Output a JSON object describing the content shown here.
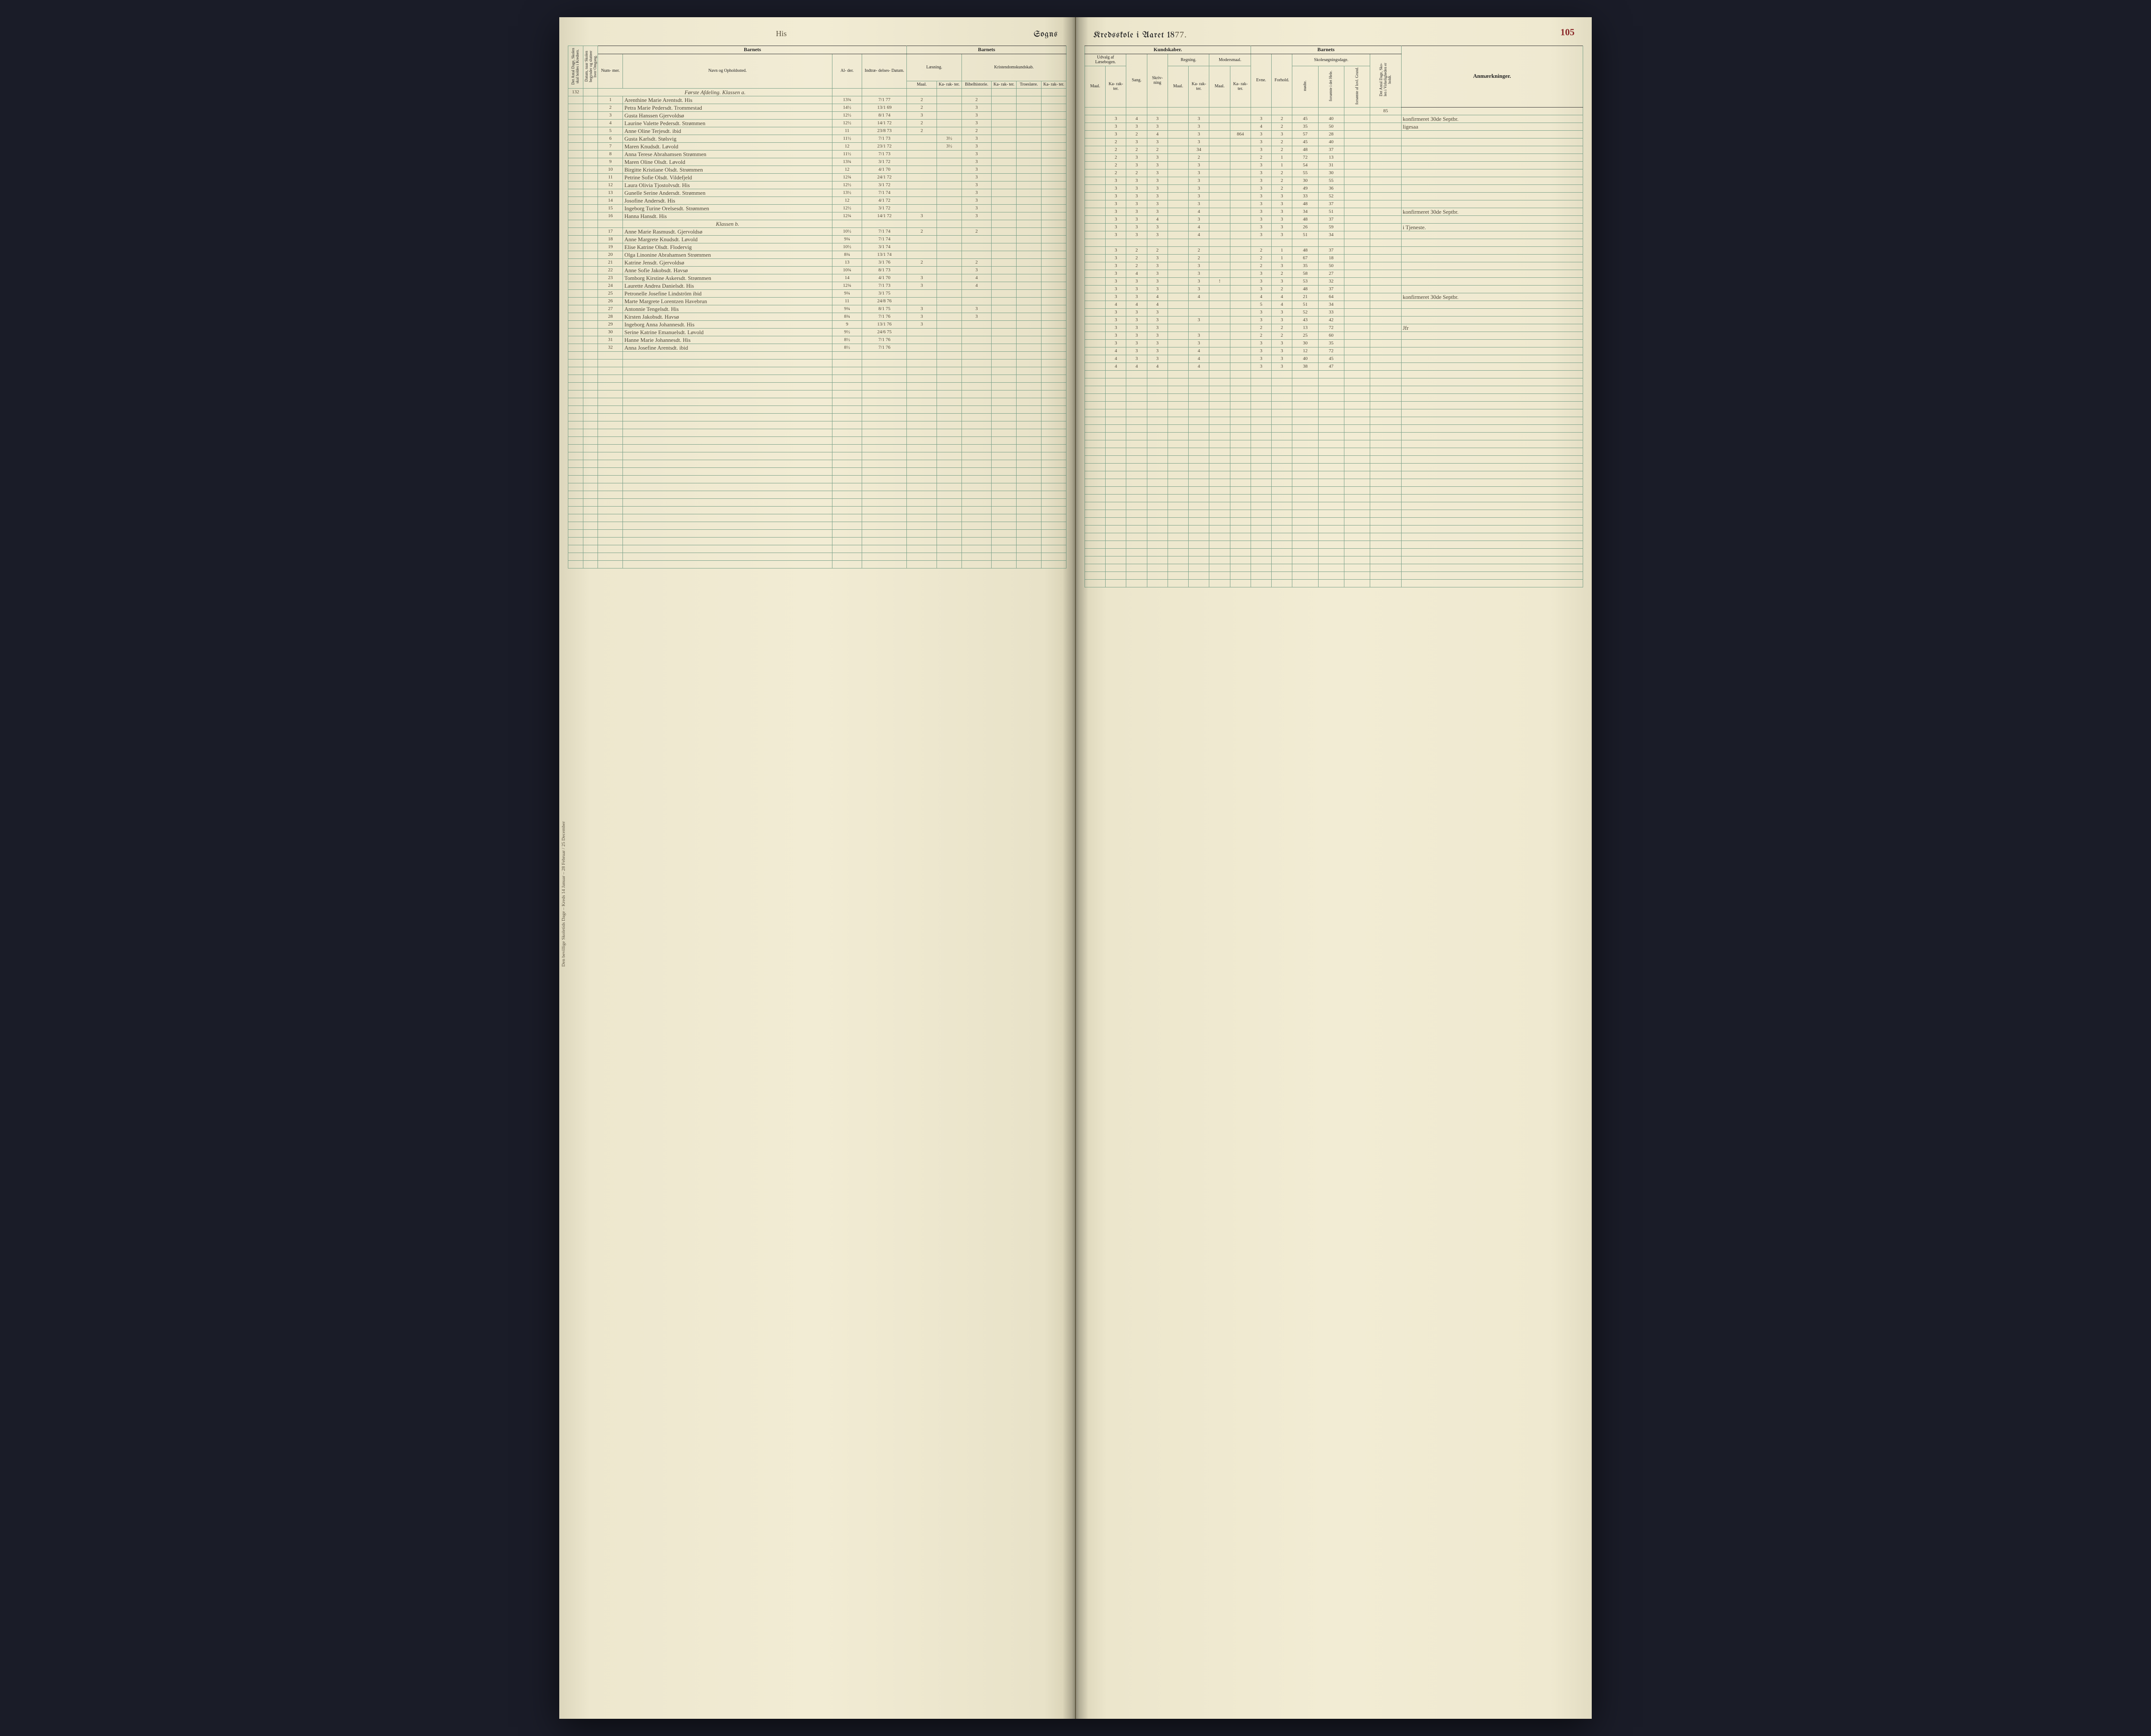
{
  "page_number": "105",
  "title_left": "Sogns",
  "title_right_prefix": "Kredsskole i Aaret 18",
  "title_year_suffix": "77.",
  "handwritten_top_left": "His",
  "side_margin_note": "Den bevillige Skoletids Dage – Kreds 14 Januar – 28 Februar / 25 December",
  "colors": {
    "paper": "#f2ecd4",
    "paper_edge": "#dcd6bc",
    "rule_line": "#7aa088",
    "heavy_line": "#333333",
    "ink_print": "#222222",
    "ink_hand": "#4b4536",
    "page_num": "#8c2a2a",
    "book_bg": "#1a1c28"
  },
  "left_page": {
    "section_barnets": "Barnets",
    "section_laesning": "Læsning.",
    "section_kristendom": "Kristendomskundskab.",
    "col_side1": "Det Antal Dage, Skolen skal holdes i Kredsen.",
    "col_side2": "Datum, naar Skolen begynder og slutteer hver Omgang.",
    "col_nummer": "Num-\nmer.",
    "col_navn": "Navn og Opholdssted.",
    "col_alder": "Al-\nder.",
    "col_indtr": "Indtræ-\ndelses-\nDatum.",
    "col_maal": "Maal.",
    "col_karak": "Ka-\nrak-\nter.",
    "col_bibel": "Bibelhistorie.",
    "col_troes": "Troeslære."
  },
  "right_page": {
    "section_kundskaber": "Kundskaber.",
    "section_barnets": "Barnets",
    "section_skolesog": "Skolesøgningsdage.",
    "col_udvalg": "Udvalg af\nLæsebogen.",
    "col_sang": "Sang.",
    "col_skriv": "Skriv-\nning",
    "col_regning": "Regning.",
    "col_modersmaal": "Modersmaal.",
    "col_evne": "Evne.",
    "col_forhold": "Forhold.",
    "col_modte": "mødte.",
    "col_fors_hele": "forsømte i\ndet Hele.",
    "col_fors_grund": "forsømte af\nlovl. Grund.",
    "col_antal_dage": "Det Antal Dage, Sko-\nlen i Virkeligheden\ner holdt.",
    "col_anm": "Anmærkninger.",
    "col_maal": "Maal.",
    "col_karak": "Ka-\nrak-\nter."
  },
  "top_numbers": {
    "left_side": "132",
    "right_total": "85"
  },
  "class_a_label": "Første Afdeling.  Klassen a.",
  "class_b_label": "Klassen b.",
  "rows_a": [
    {
      "n": "1",
      "name": "Arenthine Marie Arentsdt. His",
      "age": "13¾",
      "date": "7/1 77",
      "l_m": "2",
      "l_k": "",
      "b_m": "2",
      "b_k": "",
      "t_m": "",
      "u_k": "3",
      "sa": "4",
      "sk": "3",
      "r_m": "",
      "r_k": "3",
      "mm": "",
      "mk": "",
      "ev": "3",
      "fo": "2",
      "mo": "45",
      "fh": "40",
      "fg": "",
      "anm": "konfirmeret 30de Septbr."
    },
    {
      "n": "2",
      "name": "Petra Marie Pedersdt. Trommestad",
      "age": "14½",
      "date": "13/1 69",
      "l_m": "2",
      "l_k": "",
      "b_m": "3",
      "b_k": "",
      "t_m": "",
      "u_k": "3",
      "sa": "3",
      "sk": "3",
      "r_m": "",
      "r_k": "3",
      "mm": "",
      "mk": "",
      "ev": "4",
      "fo": "2",
      "mo": "35",
      "fh": "50",
      "fg": "",
      "anm": "ligesaa"
    },
    {
      "n": "3",
      "name": "Gusta Hanssen Gjervoldsø",
      "age": "12½",
      "date": "8/1 74",
      "l_m": "3",
      "l_k": "",
      "b_m": "3",
      "b_k": "",
      "t_m": "",
      "u_k": "3",
      "sa": "2",
      "sk": "4",
      "r_m": "",
      "r_k": "3",
      "mm": "",
      "mk": "864",
      "ev": "3",
      "fo": "3",
      "mo": "57",
      "fh": "28",
      "fg": "",
      "anm": ""
    },
    {
      "n": "4",
      "name": "Laurine Valette Pedersdt. Strømmen",
      "age": "12½",
      "date": "14/1 72",
      "l_m": "2",
      "l_k": "",
      "b_m": "3",
      "b_k": "",
      "t_m": "",
      "u_k": "2",
      "sa": "3",
      "sk": "3",
      "r_m": "",
      "r_k": "3",
      "mm": "",
      "mk": "",
      "ev": "3",
      "fo": "2",
      "mo": "45",
      "fh": "40",
      "fg": "",
      "anm": ""
    },
    {
      "n": "5",
      "name": "Anne Oline Terjesdt. ibid",
      "age": "11",
      "date": "23/8 73",
      "l_m": "2",
      "l_k": "",
      "b_m": "2",
      "b_k": "",
      "t_m": "",
      "u_k": "2",
      "sa": "2",
      "sk": "2",
      "r_m": "",
      "r_k": "34",
      "mm": "",
      "mk": "",
      "ev": "3",
      "fo": "2",
      "mo": "48",
      "fh": "37",
      "fg": "",
      "anm": ""
    },
    {
      "n": "6",
      "name": "Gusta Karlsdt. Stølsvig",
      "age": "11½",
      "date": "7/1 73",
      "l_m": "",
      "l_k": "3½",
      "b_m": "3",
      "b_k": "",
      "t_m": "",
      "u_k": "2",
      "sa": "3",
      "sk": "3",
      "r_m": "",
      "r_k": "2",
      "mm": "",
      "mk": "",
      "ev": "2",
      "fo": "1",
      "mo": "72",
      "fh": "13",
      "fg": "",
      "anm": ""
    },
    {
      "n": "7",
      "name": "Maren Knudsdt. Løvold",
      "age": "12",
      "date": "23/1 72",
      "l_m": "",
      "l_k": "3½",
      "b_m": "3",
      "b_k": "",
      "t_m": "",
      "u_k": "2",
      "sa": "3",
      "sk": "3",
      "r_m": "",
      "r_k": "3",
      "mm": "",
      "mk": "",
      "ev": "3",
      "fo": "1",
      "mo": "54",
      "fh": "31",
      "fg": "",
      "anm": ""
    },
    {
      "n": "8",
      "name": "Anna Terese Abrahamsen Strømmen",
      "age": "11½",
      "date": "7/1 73",
      "l_m": "",
      "l_k": "",
      "b_m": "3",
      "b_k": "",
      "t_m": "",
      "u_k": "2",
      "sa": "2",
      "sk": "3",
      "r_m": "",
      "r_k": "3",
      "mm": "",
      "mk": "",
      "ev": "3",
      "fo": "2",
      "mo": "55",
      "fh": "30",
      "fg": "",
      "anm": ""
    },
    {
      "n": "9",
      "name": "Maren Oline Olsdt. Løvold",
      "age": "13¾",
      "date": "3/1 72",
      "l_m": "",
      "l_k": "",
      "b_m": "3",
      "b_k": "",
      "t_m": "",
      "u_k": "3",
      "sa": "3",
      "sk": "3",
      "r_m": "",
      "r_k": "3",
      "mm": "",
      "mk": "",
      "ev": "3",
      "fo": "2",
      "mo": "30",
      "fh": "55",
      "fg": "",
      "anm": ""
    },
    {
      "n": "10",
      "name": "Birgitte Kristiane Olsdt. Strømmen",
      "age": "12",
      "date": "4/1 70",
      "l_m": "",
      "l_k": "",
      "b_m": "3",
      "b_k": "",
      "t_m": "",
      "u_k": "3",
      "sa": "3",
      "sk": "3",
      "r_m": "",
      "r_k": "3",
      "mm": "",
      "mk": "",
      "ev": "3",
      "fo": "2",
      "mo": "49",
      "fh": "36",
      "fg": "",
      "anm": ""
    },
    {
      "n": "11",
      "name": "Petrine Sofie Olsdt. Vildefjeld",
      "age": "12¾",
      "date": "24/1 72",
      "l_m": "",
      "l_k": "",
      "b_m": "3",
      "b_k": "",
      "t_m": "",
      "u_k": "3",
      "sa": "3",
      "sk": "3",
      "r_m": "",
      "r_k": "3",
      "mm": "",
      "mk": "",
      "ev": "3",
      "fo": "3",
      "mo": "33",
      "fh": "52",
      "fg": "",
      "anm": ""
    },
    {
      "n": "12",
      "name": "Laura Olivia Tjostolvsdt. His",
      "age": "12½",
      "date": "3/1 72",
      "l_m": "",
      "l_k": "",
      "b_m": "3",
      "b_k": "",
      "t_m": "",
      "u_k": "3",
      "sa": "3",
      "sk": "3",
      "r_m": "",
      "r_k": "3",
      "mm": "",
      "mk": "",
      "ev": "3",
      "fo": "3",
      "mo": "48",
      "fh": "37",
      "fg": "",
      "anm": ""
    },
    {
      "n": "13",
      "name": "Gunelle Serine Andersdt. Strømmen",
      "age": "13½",
      "date": "7/1 74",
      "l_m": "",
      "l_k": "",
      "b_m": "3",
      "b_k": "",
      "t_m": "",
      "u_k": "3",
      "sa": "3",
      "sk": "3",
      "r_m": "",
      "r_k": "4",
      "mm": "",
      "mk": "",
      "ev": "3",
      "fo": "3",
      "mo": "34",
      "fh": "51",
      "fg": "",
      "anm": "konfirmeret 30de Septbr."
    },
    {
      "n": "14",
      "name": "Josofine Andersdt. His",
      "age": "12",
      "date": "4/1 72",
      "l_m": "",
      "l_k": "",
      "b_m": "3",
      "b_k": "",
      "t_m": "",
      "u_k": "3",
      "sa": "3",
      "sk": "4",
      "r_m": "",
      "r_k": "3",
      "mm": "",
      "mk": "",
      "ev": "3",
      "fo": "3",
      "mo": "48",
      "fh": "37",
      "fg": "",
      "anm": ""
    },
    {
      "n": "15",
      "name": "Ingeborg Turine Orelsesdt. Strømmen",
      "age": "12½",
      "date": "3/1 72",
      "l_m": "",
      "l_k": "",
      "b_m": "3",
      "b_k": "",
      "t_m": "",
      "u_k": "3",
      "sa": "3",
      "sk": "3",
      "r_m": "",
      "r_k": "4",
      "mm": "",
      "mk": "",
      "ev": "3",
      "fo": "3",
      "mo": "26",
      "fh": "59",
      "fg": "",
      "anm": "i Tjeneste."
    },
    {
      "n": "16",
      "name": "Hanna Hansdt. His",
      "age": "12¾",
      "date": "14/1 72",
      "l_m": "3",
      "l_k": "",
      "b_m": "3",
      "b_k": "",
      "t_m": "",
      "u_k": "3",
      "sa": "3",
      "sk": "3",
      "r_m": "",
      "r_k": "4",
      "mm": "",
      "mk": "",
      "ev": "3",
      "fo": "3",
      "mo": "51",
      "fh": "34",
      "fg": "",
      "anm": ""
    }
  ],
  "rows_b": [
    {
      "n": "17",
      "name": "Anne Marie Rasmusdt. Gjervoldsø",
      "age": "10½",
      "date": "7/1 74",
      "l_m": "2",
      "l_k": "",
      "b_m": "2",
      "b_k": "",
      "t_m": "",
      "u_k": "3",
      "sa": "2",
      "sk": "2",
      "r_m": "",
      "r_k": "2",
      "mm": "",
      "mk": "",
      "ev": "2",
      "fo": "1",
      "mo": "48",
      "fh": "37",
      "fg": "",
      "anm": ""
    },
    {
      "n": "18",
      "name": "Anne Margrete Knudsdt. Løvold",
      "age": "9¾",
      "date": "7/1 74",
      "l_m": "",
      "l_k": "",
      "b_m": "",
      "b_k": "",
      "t_m": "",
      "u_k": "3",
      "sa": "2",
      "sk": "3",
      "r_m": "",
      "r_k": "2",
      "mm": "",
      "mk": "",
      "ev": "2",
      "fo": "1",
      "mo": "67",
      "fh": "18",
      "fg": "",
      "anm": ""
    },
    {
      "n": "19",
      "name": "Elise Katrine Olsdt. Flodervig",
      "age": "10½",
      "date": "3/1 74",
      "l_m": "",
      "l_k": "",
      "b_m": "",
      "b_k": "",
      "t_m": "",
      "u_k": "3",
      "sa": "2",
      "sk": "3",
      "r_m": "",
      "r_k": "3",
      "mm": "",
      "mk": "",
      "ev": "2",
      "fo": "3",
      "mo": "35",
      "fh": "50",
      "fg": "",
      "anm": ""
    },
    {
      "n": "20",
      "name": "Olga Linonine Abrahamsen Strømmen",
      "age": "8¾",
      "date": "13/1 74",
      "l_m": "",
      "l_k": "",
      "b_m": "",
      "b_k": "",
      "t_m": "",
      "u_k": "3",
      "sa": "4",
      "sk": "3",
      "r_m": "",
      "r_k": "3",
      "mm": "",
      "mk": "",
      "ev": "3",
      "fo": "2",
      "mo": "58",
      "fh": "27",
      "fg": "",
      "anm": ""
    },
    {
      "n": "21",
      "name": "Katrine Jensdt. Gjervoldsø",
      "age": "13",
      "date": "3/1 76",
      "l_m": "2",
      "l_k": "",
      "b_m": "2",
      "b_k": "",
      "t_m": "",
      "u_k": "3",
      "sa": "3",
      "sk": "3",
      "r_m": "",
      "r_k": "3",
      "mm": "!",
      "mk": "",
      "ev": "3",
      "fo": "3",
      "mo": "53",
      "fh": "32",
      "fg": "",
      "anm": ""
    },
    {
      "n": "22",
      "name": "Anne Sofie Jakobsdt. Havsø",
      "age": "10¾",
      "date": "8/1 73",
      "l_m": "",
      "l_k": "",
      "b_m": "3",
      "b_k": "",
      "t_m": "",
      "u_k": "3",
      "sa": "3",
      "sk": "3",
      "r_m": "",
      "r_k": "3",
      "mm": "",
      "mk": "",
      "ev": "3",
      "fo": "2",
      "mo": "48",
      "fh": "37",
      "fg": "",
      "anm": ""
    },
    {
      "n": "23",
      "name": "Tomborg Kirstine Askersdt. Strømmen",
      "age": "14",
      "date": "4/1 70",
      "l_m": "3",
      "l_k": "",
      "b_m": "4",
      "b_k": "",
      "t_m": "",
      "u_k": "3",
      "sa": "3",
      "sk": "4",
      "r_m": "",
      "r_k": "4",
      "mm": "",
      "mk": "",
      "ev": "4",
      "fo": "4",
      "mo": "21",
      "fh": "64",
      "fg": "",
      "anm": "konfirmeret 30de Septbr."
    },
    {
      "n": "24",
      "name": "Laurette Andrea Danielsdt. His",
      "age": "12¾",
      "date": "7/1 73",
      "l_m": "3",
      "l_k": "",
      "b_m": "4",
      "b_k": "",
      "t_m": "",
      "u_k": "4",
      "sa": "4",
      "sk": "4",
      "r_m": "",
      "r_k": "",
      "mm": "",
      "mk": "",
      "ev": "5",
      "fo": "4",
      "mo": "51",
      "fh": "34",
      "fg": "",
      "anm": ""
    },
    {
      "n": "25",
      "name": "Petronelle Josefine Lindström ibid",
      "age": "9¾",
      "date": "3/1 75",
      "l_m": "",
      "l_k": "",
      "b_m": "",
      "b_k": "",
      "t_m": "",
      "u_k": "3",
      "sa": "3",
      "sk": "3",
      "r_m": "",
      "r_k": "",
      "mm": "",
      "mk": "",
      "ev": "3",
      "fo": "3",
      "mo": "52",
      "fh": "33",
      "fg": "",
      "anm": ""
    },
    {
      "n": "26",
      "name": "Marte Margrete Lorentzen Havebrun",
      "age": "11",
      "date": "24/8 76",
      "l_m": "",
      "l_k": "",
      "b_m": "",
      "b_k": "",
      "t_m": "",
      "u_k": "3",
      "sa": "3",
      "sk": "3",
      "r_m": "",
      "r_k": "3",
      "mm": "",
      "mk": "",
      "ev": "3",
      "fo": "3",
      "mo": "43",
      "fh": "42",
      "fg": "",
      "anm": ""
    },
    {
      "n": "27",
      "name": "Antonnie Tengelsdt. His",
      "age": "9¾",
      "date": "8/1 75",
      "l_m": "3",
      "l_k": "",
      "b_m": "3",
      "b_k": "",
      "t_m": "",
      "u_k": "3",
      "sa": "3",
      "sk": "3",
      "r_m": "",
      "r_k": "",
      "mm": "",
      "mk": "",
      "ev": "2",
      "fo": "2",
      "mo": "13",
      "fh": "72",
      "fg": "",
      "anm": "Jfr"
    },
    {
      "n": "28",
      "name": "Kirsten Jakobsdt. Havsø",
      "age": "8¾",
      "date": "7/1 76",
      "l_m": "3",
      "l_k": "",
      "b_m": "3",
      "b_k": "",
      "t_m": "",
      "u_k": "3",
      "sa": "3",
      "sk": "3",
      "r_m": "",
      "r_k": "3",
      "mm": "",
      "mk": "",
      "ev": "2",
      "fo": "2",
      "mo": "25",
      "fh": "60",
      "fg": "",
      "anm": ""
    },
    {
      "n": "29",
      "name": "Ingeborg Anna Johannesdt. His",
      "age": "9",
      "date": "13/1 76",
      "l_m": "3",
      "l_k": "",
      "b_m": "",
      "b_k": "",
      "t_m": "",
      "u_k": "3",
      "sa": "3",
      "sk": "3",
      "r_m": "",
      "r_k": "3",
      "mm": "",
      "mk": "",
      "ev": "3",
      "fo": "3",
      "mo": "30",
      "fh": "35",
      "fg": "",
      "anm": ""
    },
    {
      "n": "30",
      "name": "Serine Katrine Emanuelsdt. Løvold",
      "age": "9½",
      "date": "24/6 75",
      "l_m": "",
      "l_k": "",
      "b_m": "",
      "b_k": "",
      "t_m": "",
      "u_k": "4",
      "sa": "3",
      "sk": "3",
      "r_m": "",
      "r_k": "4",
      "mm": "",
      "mk": "",
      "ev": "3",
      "fo": "3",
      "mo": "12",
      "fh": "72",
      "fg": "",
      "anm": ""
    },
    {
      "n": "31",
      "name": "Hanne Marie Johannesdt. His",
      "age": "8½",
      "date": "7/1 76",
      "l_m": "",
      "l_k": "",
      "b_m": "",
      "b_k": "",
      "t_m": "",
      "u_k": "4",
      "sa": "3",
      "sk": "3",
      "r_m": "",
      "r_k": "4",
      "mm": "",
      "mk": "",
      "ev": "3",
      "fo": "3",
      "mo": "40",
      "fh": "45",
      "fg": "",
      "anm": ""
    },
    {
      "n": "32",
      "name": "Anna Josefine Arentsdt. ibid",
      "age": "8½",
      "date": "7/1 76",
      "l_m": "",
      "l_k": "",
      "b_m": "",
      "b_k": "",
      "t_m": "",
      "u_k": "4",
      "sa": "4",
      "sk": "4",
      "r_m": "",
      "r_k": "4",
      "mm": "",
      "mk": "",
      "ev": "3",
      "fo": "3",
      "mo": "38",
      "fh": "47",
      "fg": "",
      "anm": ""
    }
  ],
  "blank_rows": 28
}
